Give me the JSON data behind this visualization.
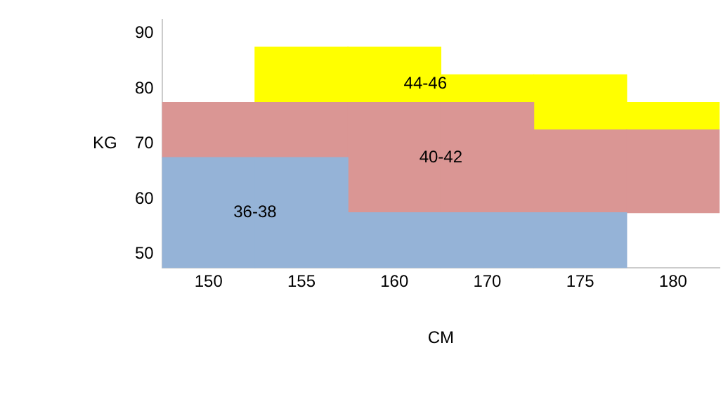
{
  "chart_data": {
    "type": "bar",
    "xlabel": "CM",
    "ylabel": "KG",
    "categories": [
      "150",
      "155",
      "160",
      "170",
      "175",
      "180"
    ],
    "ylim": [
      47.5,
      92.5
    ],
    "yticks": [
      50,
      60,
      70,
      80,
      90
    ],
    "series": [
      {
        "name": "36-38",
        "color": "#95b3d7",
        "base": [
          47.5,
          47.5,
          47.5,
          47.5,
          47.5,
          null
        ],
        "values": [
          20,
          20,
          10,
          10,
          10,
          null
        ]
      },
      {
        "name": "40-42",
        "color": "#da9694",
        "base": [
          67.5,
          67.5,
          57.5,
          57.5,
          57.5,
          57.5
        ],
        "values": [
          10,
          10,
          20,
          20,
          15,
          15
        ]
      },
      {
        "name": "44-46",
        "color": "#ffff00",
        "base": [
          null,
          77.5,
          77.5,
          77.5,
          72.5,
          72.5
        ],
        "values": [
          null,
          10,
          10,
          5,
          10,
          5
        ]
      }
    ]
  }
}
